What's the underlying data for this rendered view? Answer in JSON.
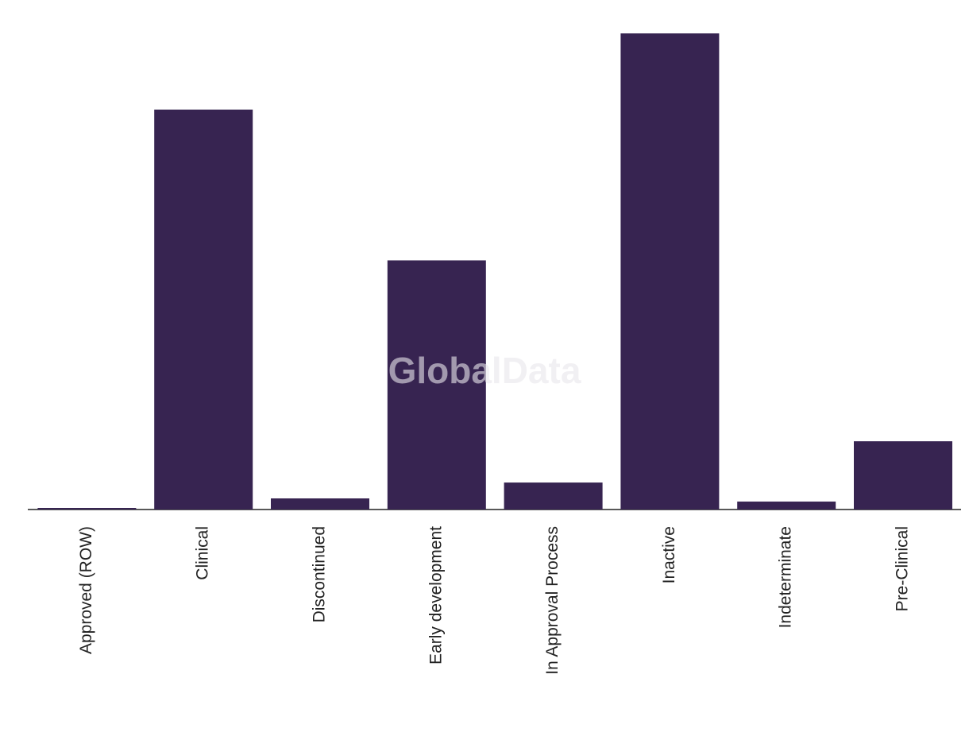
{
  "chart_data": {
    "type": "bar",
    "watermark": "GlobalData",
    "categories": [
      "Approved (ROW)",
      "Clinical",
      "Discontinued",
      "Early development",
      "In Approval Process",
      "Inactive",
      "Indeterminate",
      "Pre-Clinical"
    ],
    "values": [
      1,
      252,
      7,
      157,
      17,
      300,
      5,
      43
    ],
    "color": "#372451",
    "ylim": [
      0,
      300
    ]
  }
}
